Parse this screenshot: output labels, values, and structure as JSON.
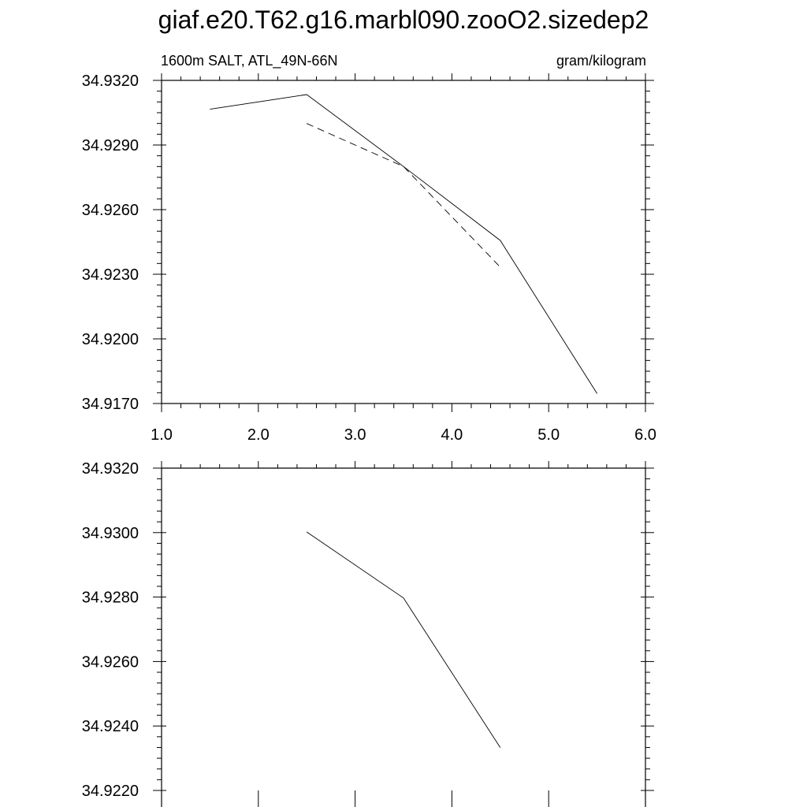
{
  "figure": {
    "title": "giaf.e20.T62.g16.marbl090.zooO2.sizedep2"
  },
  "chart_data": [
    {
      "type": "line",
      "subtitle_left": "1600m SALT, ATL_49N-66N",
      "subtitle_right": "gram/kilogram",
      "xlim": [
        1.0,
        6.0
      ],
      "ylim": [
        34.917,
        34.932
      ],
      "x_ticks": [
        "1.0",
        "2.0",
        "3.0",
        "4.0",
        "5.0",
        "6.0"
      ],
      "y_ticks": [
        "34.9170",
        "34.9200",
        "34.9230",
        "34.9260",
        "34.9290",
        "34.9320"
      ],
      "grid": false,
      "series": [
        {
          "style": "solid",
          "color": "#000000",
          "points": [
            [
              1.5,
              34.93066
            ],
            [
              2.5,
              34.93134
            ],
            [
              3.5,
              34.928
            ],
            [
              4.5,
              34.92457
            ],
            [
              5.5,
              34.91746
            ]
          ]
        },
        {
          "style": "dashed",
          "color": "#000000",
          "points": [
            [
              2.5,
              34.93
            ],
            [
              3.5,
              34.928
            ],
            [
              4.5,
              34.92333
            ]
          ]
        }
      ]
    },
    {
      "type": "line",
      "xlim": [
        1.0,
        6.0
      ],
      "ylim": [
        34.922,
        34.932
      ],
      "y_ticks": [
        "34.9220",
        "34.9240",
        "34.9260",
        "34.9280",
        "34.9300",
        "34.9320"
      ],
      "grid": false,
      "series": [
        {
          "style": "solid",
          "color": "#000000",
          "points": [
            [
              2.5,
              34.93002
            ],
            [
              3.5,
              34.92797
            ],
            [
              4.5,
              34.92333
            ]
          ]
        }
      ]
    }
  ]
}
